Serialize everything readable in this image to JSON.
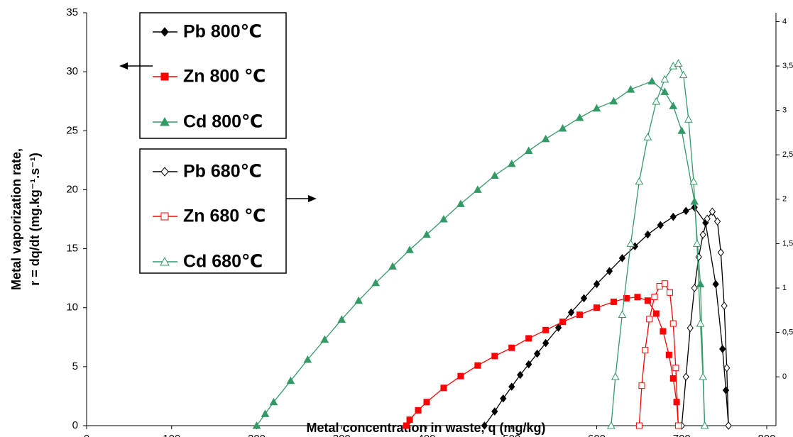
{
  "chart_data": {
    "type": "line",
    "xlabel": "Metal concentration in waste, q (mg/kg)",
    "ylabel_lines": [
      "Metal vaporization rate,",
      "r = dq/dt (mg.kg⁻¹.s⁻¹)"
    ],
    "xlim": [
      0,
      800
    ],
    "xticks": [
      0,
      100,
      200,
      300,
      400,
      500,
      600,
      700,
      800
    ],
    "ylim": [
      0,
      35
    ],
    "yticks": [
      0,
      5,
      10,
      15,
      20,
      25,
      30,
      35
    ],
    "y2lim": [
      -0.55,
      4.1
    ],
    "y2ticks": [
      0,
      {
        "value": 0.5,
        "label": "0,5"
      },
      1,
      {
        "value": 1.5,
        "label": "1,5"
      },
      2,
      {
        "value": 2.5,
        "label": "2,5"
      },
      3,
      {
        "value": 3.5,
        "label": "3,5"
      },
      4
    ],
    "series": [
      {
        "name": "Pb 800℃",
        "color": "#000000",
        "marker": "diamond",
        "filled": true,
        "x": [
          468,
          480,
          490,
          500,
          510,
          520,
          530,
          540,
          555,
          570,
          585,
          600,
          615,
          630,
          645,
          660,
          675,
          690,
          705,
          715,
          728,
          740,
          748,
          752,
          755
        ],
        "values": [
          0,
          1.2,
          2.3,
          3.3,
          4.3,
          5.2,
          6.1,
          7.0,
          8.3,
          9.6,
          10.8,
          12.0,
          13.1,
          14.2,
          15.2,
          16.2,
          17.0,
          17.7,
          18.2,
          18.5,
          17.2,
          12,
          6.5,
          3,
          0
        ]
      },
      {
        "name": "Zn 800 ℃",
        "color": "#ff0000",
        "marker": "square",
        "filled": true,
        "x": [
          376,
          380,
          390,
          400,
          420,
          440,
          460,
          480,
          500,
          520,
          540,
          560,
          580,
          600,
          620,
          635,
          648,
          660,
          670,
          678,
          685,
          690,
          694,
          696
        ],
        "values": [
          0,
          0.5,
          1.3,
          2.0,
          3.2,
          4.2,
          5.1,
          5.9,
          6.6,
          7.4,
          8.1,
          8.8,
          9.4,
          10.0,
          10.5,
          10.8,
          10.9,
          10.6,
          9.5,
          8.0,
          6.0,
          4.0,
          2.0,
          0
        ]
      },
      {
        "name": "Cd 800℃",
        "color": "#339966",
        "marker": "triangle",
        "filled": true,
        "x": [
          200,
          210,
          220,
          240,
          260,
          280,
          300,
          320,
          340,
          360,
          380,
          400,
          420,
          440,
          460,
          480,
          500,
          520,
          540,
          560,
          580,
          600,
          620,
          640,
          665,
          680,
          690,
          700,
          715,
          722,
          727
        ],
        "values": [
          0,
          1.0,
          2.0,
          3.8,
          5.6,
          7.3,
          9.0,
          10.6,
          12.1,
          13.5,
          14.9,
          16.2,
          17.5,
          18.8,
          20.0,
          21.2,
          22.2,
          23.3,
          24.3,
          25.2,
          26.1,
          26.9,
          27.5,
          28.5,
          29.2,
          28.3,
          27.1,
          25,
          19,
          12,
          0
        ]
      },
      {
        "name": "Pb 680℃",
        "color": "#000000",
        "marker": "diamond",
        "filled": false,
        "axis": "y2",
        "x": [
          700,
          705,
          710,
          715,
          720,
          725,
          730,
          736,
          742,
          746,
          750,
          753,
          755
        ],
        "values": [
          -0.55,
          0.0,
          0.55,
          1.0,
          1.35,
          1.6,
          1.78,
          1.86,
          1.75,
          1.4,
          0.8,
          0.1,
          -0.55
        ]
      },
      {
        "name": "Zn 680 ℃",
        "color": "#ff0000",
        "marker": "square",
        "filled": false,
        "axis": "y2",
        "x": [
          650,
          653,
          657,
          662,
          668,
          674,
          680,
          686,
          690,
          693,
          696
        ],
        "values": [
          -0.55,
          -0.1,
          0.3,
          0.65,
          0.9,
          1.02,
          1.05,
          0.95,
          0.6,
          0.1,
          -0.55
        ]
      },
      {
        "name": "Cd 680℃",
        "color": "#339966",
        "marker": "triangle",
        "filled": false,
        "axis": "y2",
        "x": [
          617,
          622,
          630,
          640,
          650,
          660,
          670,
          680,
          690,
          696,
          702,
          708,
          714,
          718,
          722,
          725,
          727
        ],
        "values": [
          -0.55,
          0.0,
          0.7,
          1.5,
          2.2,
          2.7,
          3.1,
          3.35,
          3.5,
          3.53,
          3.4,
          2.9,
          2.2,
          1.5,
          0.6,
          0.0,
          -0.55
        ]
      }
    ]
  }
}
